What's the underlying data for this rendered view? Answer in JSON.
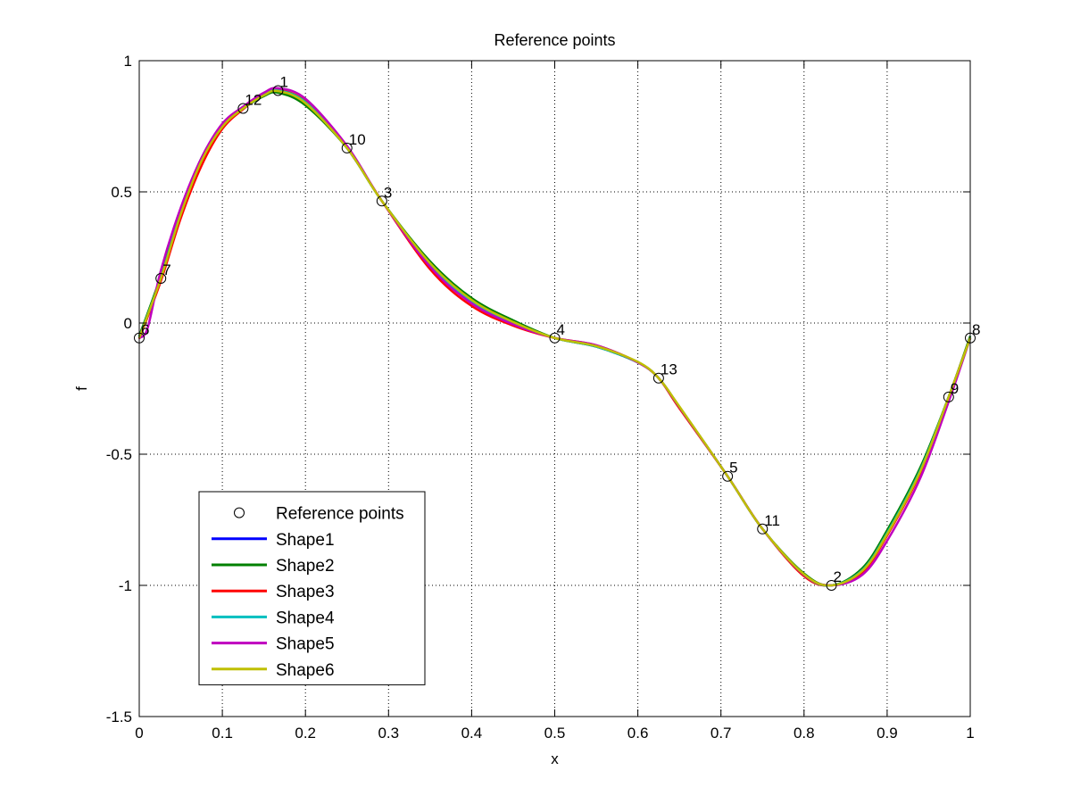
{
  "chart_data": {
    "type": "line",
    "title": "Reference points",
    "xlabel": "x",
    "ylabel": "f",
    "xlim": [
      0,
      1
    ],
    "ylim": [
      -1.5,
      1
    ],
    "xticks": [
      0,
      0.1,
      0.2,
      0.3,
      0.4,
      0.5,
      0.6,
      0.7,
      0.8,
      0.9,
      1
    ],
    "xtick_labels": [
      "0",
      "0.1",
      "0.2",
      "0.3",
      "0.4",
      "0.5",
      "0.6",
      "0.7",
      "0.8",
      "0.9",
      "1"
    ],
    "yticks": [
      -1.5,
      -1,
      -0.5,
      0,
      0.5,
      1
    ],
    "ytick_labels": [
      "-1.5",
      "-1",
      "-0.5",
      "0",
      "0.5",
      "1"
    ],
    "grid": true,
    "legend_position": "bottom-left",
    "reference_points": {
      "name": "Reference points",
      "points": [
        {
          "label": "1",
          "x": 0.167,
          "y": 0.886
        },
        {
          "label": "2",
          "x": 0.833,
          "y": -1.0
        },
        {
          "label": "3",
          "x": 0.292,
          "y": 0.465
        },
        {
          "label": "4",
          "x": 0.5,
          "y": -0.057
        },
        {
          "label": "5",
          "x": 0.708,
          "y": -0.584
        },
        {
          "label": "6",
          "x": 0.0,
          "y": -0.057
        },
        {
          "label": "7",
          "x": 0.026,
          "y": 0.17
        },
        {
          "label": "8",
          "x": 1.0,
          "y": -0.057
        },
        {
          "label": "9",
          "x": 0.974,
          "y": -0.282
        },
        {
          "label": "10",
          "x": 0.25,
          "y": 0.667
        },
        {
          "label": "11",
          "x": 0.75,
          "y": -0.785
        },
        {
          "label": "12",
          "x": 0.125,
          "y": 0.818
        },
        {
          "label": "13",
          "x": 0.625,
          "y": -0.21
        }
      ]
    },
    "series": [
      {
        "name": "Shape1",
        "color": "#0000ff",
        "y_offset": 0.0,
        "x": [
          0,
          0.026,
          0.05,
          0.075,
          0.1,
          0.125,
          0.15,
          0.167,
          0.2,
          0.25,
          0.292,
          0.35,
          0.4,
          0.45,
          0.5,
          0.55,
          0.6,
          0.625,
          0.65,
          0.708,
          0.75,
          0.8,
          0.833,
          0.87,
          0.9,
          0.94,
          0.974,
          1.0
        ],
        "y": [
          -0.057,
          0.17,
          0.42,
          0.62,
          0.75,
          0.818,
          0.87,
          0.886,
          0.84,
          0.667,
          0.465,
          0.22,
          0.08,
          0.0,
          -0.057,
          -0.09,
          -0.15,
          -0.21,
          -0.32,
          -0.584,
          -0.785,
          -0.96,
          -1.0,
          -0.94,
          -0.8,
          -0.56,
          -0.282,
          -0.057
        ]
      },
      {
        "name": "Shape2",
        "color": "#008000",
        "y_offset": 0.012,
        "x": [
          0,
          0.026,
          0.05,
          0.075,
          0.1,
          0.125,
          0.15,
          0.167,
          0.2,
          0.25,
          0.292,
          0.35,
          0.4,
          0.45,
          0.5,
          0.55,
          0.6,
          0.625,
          0.65,
          0.708,
          0.75,
          0.8,
          0.833,
          0.87,
          0.9,
          0.94,
          0.974,
          1.0
        ],
        "y": [
          -0.05,
          0.18,
          0.43,
          0.63,
          0.755,
          0.818,
          0.865,
          0.878,
          0.83,
          0.667,
          0.465,
          0.235,
          0.095,
          0.01,
          -0.057,
          -0.09,
          -0.15,
          -0.21,
          -0.32,
          -0.584,
          -0.785,
          -0.955,
          -1.0,
          -0.935,
          -0.79,
          -0.55,
          -0.282,
          -0.05
        ]
      },
      {
        "name": "Shape3",
        "color": "#ff0000",
        "y_offset": -0.015,
        "x": [
          0,
          0.026,
          0.05,
          0.075,
          0.1,
          0.125,
          0.15,
          0.167,
          0.2,
          0.25,
          0.292,
          0.35,
          0.4,
          0.45,
          0.5,
          0.55,
          0.6,
          0.625,
          0.65,
          0.708,
          0.75,
          0.8,
          0.833,
          0.87,
          0.9,
          0.94,
          0.974,
          1.0
        ],
        "y": [
          -0.06,
          0.16,
          0.4,
          0.6,
          0.74,
          0.815,
          0.872,
          0.888,
          0.845,
          0.667,
          0.465,
          0.205,
          0.065,
          -0.01,
          -0.057,
          -0.085,
          -0.15,
          -0.21,
          -0.325,
          -0.584,
          -0.785,
          -0.965,
          -1.0,
          -0.95,
          -0.81,
          -0.57,
          -0.282,
          -0.057
        ]
      },
      {
        "name": "Shape4",
        "color": "#00bfbf",
        "y_offset": 0.0,
        "x": [
          0,
          0.026,
          0.05,
          0.075,
          0.1,
          0.125,
          0.15,
          0.167,
          0.2,
          0.25,
          0.292,
          0.35,
          0.4,
          0.45,
          0.5,
          0.55,
          0.6,
          0.625,
          0.65,
          0.708,
          0.75,
          0.8,
          0.833,
          0.87,
          0.9,
          0.94,
          0.974,
          1.0
        ],
        "y": [
          -0.055,
          0.172,
          0.425,
          0.622,
          0.752,
          0.818,
          0.87,
          0.886,
          0.842,
          0.667,
          0.465,
          0.222,
          0.082,
          0.002,
          -0.057,
          -0.09,
          -0.15,
          -0.21,
          -0.32,
          -0.584,
          -0.785,
          -0.96,
          -1.0,
          -0.942,
          -0.8,
          -0.56,
          -0.282,
          -0.057
        ]
      },
      {
        "name": "Shape5",
        "color": "#bf00bf",
        "y_offset": 0.0,
        "x": [
          0,
          0.01,
          0.026,
          0.05,
          0.075,
          0.1,
          0.125,
          0.15,
          0.167,
          0.2,
          0.25,
          0.292,
          0.35,
          0.4,
          0.45,
          0.5,
          0.55,
          0.6,
          0.625,
          0.65,
          0.708,
          0.75,
          0.8,
          0.833,
          0.87,
          0.9,
          0.94,
          0.974,
          1.0
        ],
        "y": [
          -0.057,
          -0.02,
          0.2,
          0.44,
          0.63,
          0.76,
          0.825,
          0.878,
          0.895,
          0.855,
          0.675,
          0.465,
          0.215,
          0.075,
          -0.005,
          -0.057,
          -0.085,
          -0.15,
          -0.21,
          -0.32,
          -0.584,
          -0.785,
          -0.96,
          -1.0,
          -0.96,
          -0.83,
          -0.59,
          -0.3,
          -0.057
        ]
      },
      {
        "name": "Shape6",
        "color": "#bfbf00",
        "y_offset": 0.0,
        "x": [
          0,
          0.026,
          0.05,
          0.075,
          0.1,
          0.125,
          0.15,
          0.167,
          0.2,
          0.25,
          0.292,
          0.35,
          0.4,
          0.45,
          0.5,
          0.55,
          0.6,
          0.625,
          0.65,
          0.708,
          0.75,
          0.8,
          0.833,
          0.87,
          0.9,
          0.94,
          0.974,
          1.0
        ],
        "y": [
          -0.057,
          0.17,
          0.415,
          0.618,
          0.748,
          0.818,
          0.868,
          0.884,
          0.838,
          0.667,
          0.465,
          0.228,
          0.088,
          0.004,
          -0.057,
          -0.088,
          -0.148,
          -0.21,
          -0.318,
          -0.584,
          -0.785,
          -0.958,
          -1.0,
          -0.945,
          -0.805,
          -0.565,
          -0.282,
          -0.057
        ]
      }
    ]
  }
}
